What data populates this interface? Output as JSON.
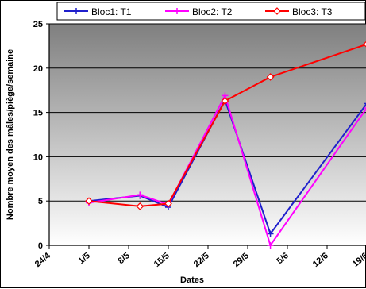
{
  "chart_data": {
    "type": "line",
    "xlabel": "Dates",
    "ylabel": "Nombre moyen des mâles/piège/semaine",
    "ylim": [
      0,
      25
    ],
    "yticks": [
      0,
      5,
      10,
      15,
      20,
      25
    ],
    "xtick_labels": [
      "24/4",
      "1/5",
      "8/5",
      "15/5",
      "22/5",
      "29/5",
      "5/6",
      "12/6",
      "19/6"
    ],
    "xlim": [
      "24/4",
      "19/6"
    ],
    "grid": "horizontal",
    "plot_background": "gray-gradient",
    "legend_position": "top",
    "series": [
      {
        "name": "Bloc1: T1",
        "color": "#1f1fcc",
        "marker": "plus",
        "points": [
          {
            "x": "1/5",
            "y": 5.0
          },
          {
            "x": "10/5",
            "y": 5.6
          },
          {
            "x": "15/5",
            "y": 4.3
          },
          {
            "x": "25/5",
            "y": 16.4
          },
          {
            "x": "2/6",
            "y": 1.3
          },
          {
            "x": "19/6",
            "y": 16.0
          }
        ]
      },
      {
        "name": "Bloc2: T2",
        "color": "#ff00ff",
        "marker": "plus",
        "points": [
          {
            "x": "1/5",
            "y": 4.8
          },
          {
            "x": "10/5",
            "y": 5.7
          },
          {
            "x": "15/5",
            "y": 4.6
          },
          {
            "x": "25/5",
            "y": 16.9
          },
          {
            "x": "2/6",
            "y": 0.0
          },
          {
            "x": "19/6",
            "y": 15.5
          }
        ]
      },
      {
        "name": "Bloc3: T3",
        "color": "#ff0000",
        "marker": "diamond",
        "points": [
          {
            "x": "1/5",
            "y": 5.0
          },
          {
            "x": "10/5",
            "y": 4.4
          },
          {
            "x": "15/5",
            "y": 4.7
          },
          {
            "x": "25/5",
            "y": 16.3
          },
          {
            "x": "2/6",
            "y": 19.0
          },
          {
            "x": "19/6",
            "y": 22.7
          }
        ]
      }
    ]
  }
}
